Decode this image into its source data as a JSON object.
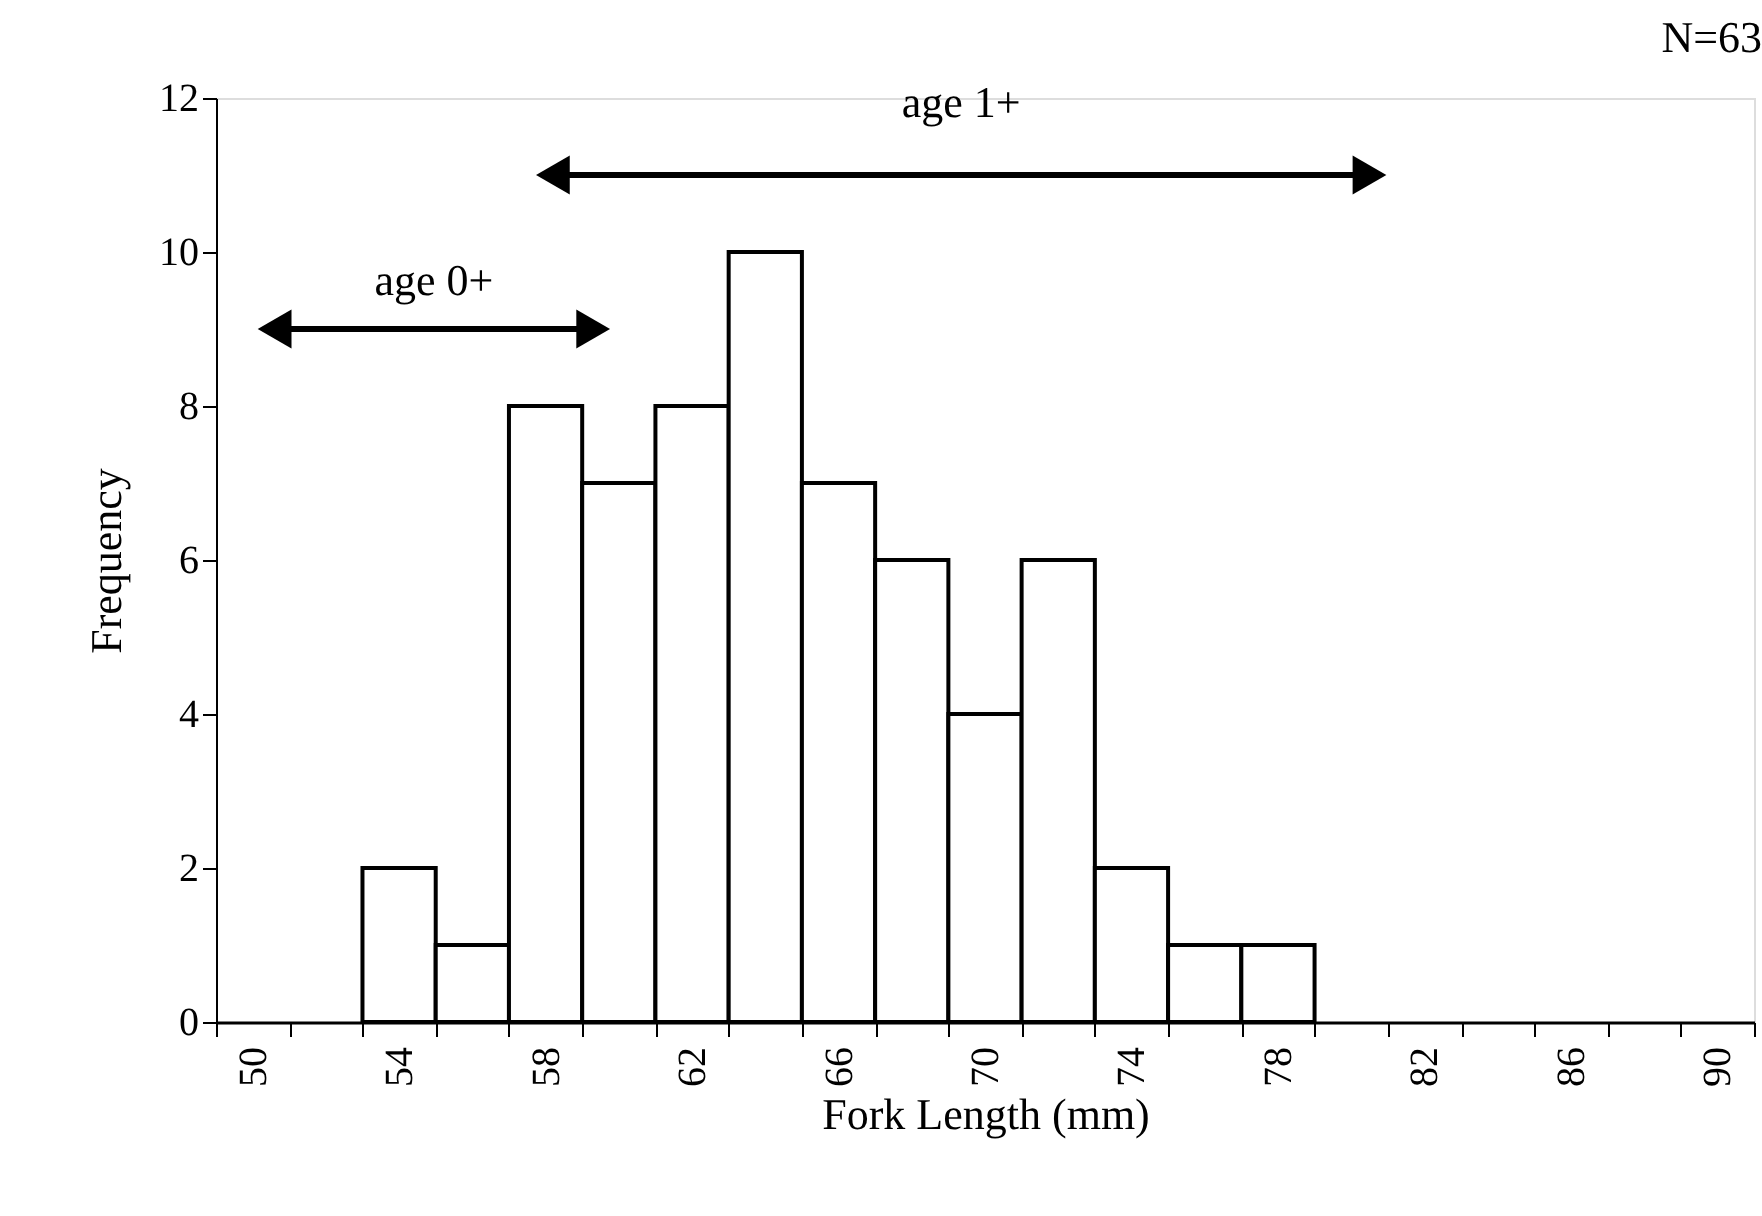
{
  "chart_data": {
    "type": "histogram",
    "xlabel": "Fork Length (mm)",
    "ylabel": "Frequency",
    "bins": [
      49,
      51,
      53,
      55,
      57,
      59,
      61,
      63,
      65,
      67,
      69,
      71,
      73,
      75,
      77,
      79,
      81,
      83,
      85,
      87,
      89,
      91
    ],
    "series": [
      {
        "color": "#ffffff",
        "values": [
          0,
          0,
          2,
          1,
          8,
          7,
          8,
          10,
          7,
          6,
          4,
          6,
          2,
          1,
          1,
          0,
          0,
          0,
          0,
          0,
          0
        ]
      },
      {
        "type": "line",
        "color": "#000000",
        "marker": "triangle",
        "x": [
          50.6,
          59.3
        ],
        "values": [
          9,
          9
        ]
      },
      {
        "type": "line",
        "color": "#000000",
        "marker": "triangle",
        "x": [
          58.2,
          80.5
        ],
        "values": [
          11,
          11
        ]
      }
    ],
    "xlim": [
      49,
      91
    ],
    "xticks": [
      {
        "value": 49,
        "label": null
      },
      {
        "value": 51,
        "label": null
      },
      {
        "value": 53,
        "label": null
      },
      {
        "value": 55,
        "label": null
      },
      {
        "value": 57,
        "label": null
      },
      {
        "value": 59,
        "label": null
      },
      {
        "value": 61,
        "label": null
      },
      {
        "value": 63,
        "label": null
      },
      {
        "value": 65,
        "label": null
      },
      {
        "value": 67,
        "label": null
      },
      {
        "value": 69,
        "label": null
      },
      {
        "value": 71,
        "label": null
      },
      {
        "value": 73,
        "label": null
      },
      {
        "value": 75,
        "label": null
      },
      {
        "value": 77,
        "label": null
      },
      {
        "value": 79,
        "label": null
      },
      {
        "value": 81,
        "label": null
      },
      {
        "value": 83,
        "label": null
      },
      {
        "value": 85,
        "label": null
      },
      {
        "value": 87,
        "label": null
      },
      {
        "value": 89,
        "label": null
      },
      {
        "value": 91,
        "label": null
      },
      50,
      54,
      58,
      62,
      66,
      70,
      74,
      78,
      82,
      86,
      90
    ],
    "ylim": [
      0,
      12
    ],
    "yticks": [
      0,
      2,
      4,
      6,
      8,
      10,
      12
    ],
    "grid": false,
    "annotations": [
      "age 0+",
      "age 1+",
      "N=63"
    ]
  }
}
